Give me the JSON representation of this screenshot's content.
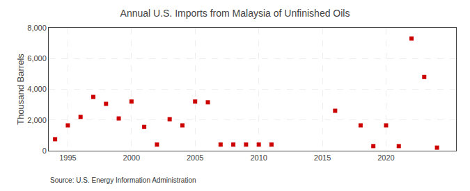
{
  "chart_data": {
    "type": "scatter",
    "title": "Annual U.S. Imports from Malaysia of Unfinished Oils",
    "ylabel": "Thousand Barrels",
    "annotation": "Source: U.S. Energy Information Administration",
    "color": "#cc0000",
    "marker": "square",
    "grid": true,
    "xlim": [
      1993.5,
      2025.5
    ],
    "ylim": [
      0,
      8000
    ],
    "xticks": [
      1995,
      2000,
      2005,
      2010,
      2015,
      2020
    ],
    "yticks": [
      0,
      {
        "value": 2000,
        "label": "2,000"
      },
      {
        "value": 4000,
        "label": "4,000"
      },
      {
        "value": 6000,
        "label": "6,000"
      },
      {
        "value": 8000,
        "label": "8,000"
      }
    ],
    "x": [
      1994,
      1995,
      1996,
      1997,
      1998,
      1999,
      2000,
      2001,
      2002,
      2003,
      2004,
      2005,
      2006,
      2007,
      2008,
      2009,
      2010,
      2011,
      2016,
      2018,
      2019,
      2020,
      2021,
      2022,
      2023,
      2024
    ],
    "values": [
      750,
      1650,
      2200,
      3500,
      3050,
      2100,
      3200,
      1550,
      400,
      2050,
      1650,
      3200,
      3150,
      400,
      400,
      400,
      400,
      400,
      2600,
      1650,
      300,
      1650,
      300,
      7300,
      4800,
      200
    ]
  }
}
